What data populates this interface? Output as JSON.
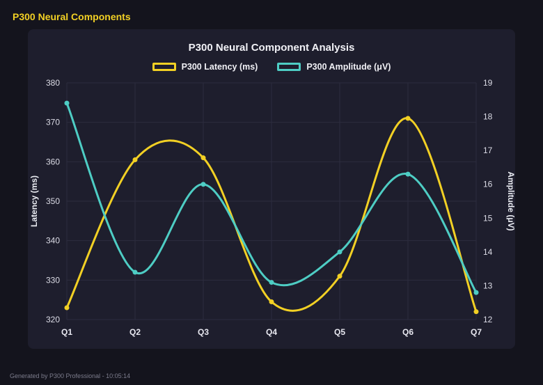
{
  "page": {
    "header_title": "P300 Neural Components",
    "footer_text": "Generated by P300 Professional - 10:05:14"
  },
  "chart_data": {
    "type": "line",
    "title": "P300 Neural Component Analysis",
    "categories": [
      "Q1",
      "Q2",
      "Q3",
      "Q4",
      "Q5",
      "Q6",
      "Q7"
    ],
    "series": [
      {
        "name": "P300 Latency (ms)",
        "axis": "left",
        "color": "#f2d024",
        "values": [
          323,
          360.5,
          361,
          324.5,
          331,
          371,
          322
        ]
      },
      {
        "name": "P300 Amplitude (μV)",
        "axis": "right",
        "color": "#4ecdc4",
        "values": [
          18.4,
          13.4,
          16.0,
          13.1,
          14.0,
          16.3,
          12.8
        ]
      }
    ],
    "left_axis": {
      "label": "Latency (ms)",
      "min": 320,
      "max": 380,
      "ticks": [
        320,
        330,
        340,
        350,
        360,
        370,
        380
      ]
    },
    "right_axis": {
      "label": "Amplitude (μV)",
      "min": 12,
      "max": 19,
      "ticks": [
        12,
        13,
        14,
        15,
        16,
        17,
        18,
        19
      ]
    },
    "grid": true,
    "legend_position": "top",
    "curve": "smooth"
  },
  "colors": {
    "background": "#14141d",
    "panel": "#1e1e2d",
    "latency": "#f2d024",
    "amplitude": "#4ecdc4",
    "text": "#f0f0f5",
    "muted": "#7c7c8c",
    "grid": "#2c2c3e",
    "tick": "#dcdce6"
  }
}
